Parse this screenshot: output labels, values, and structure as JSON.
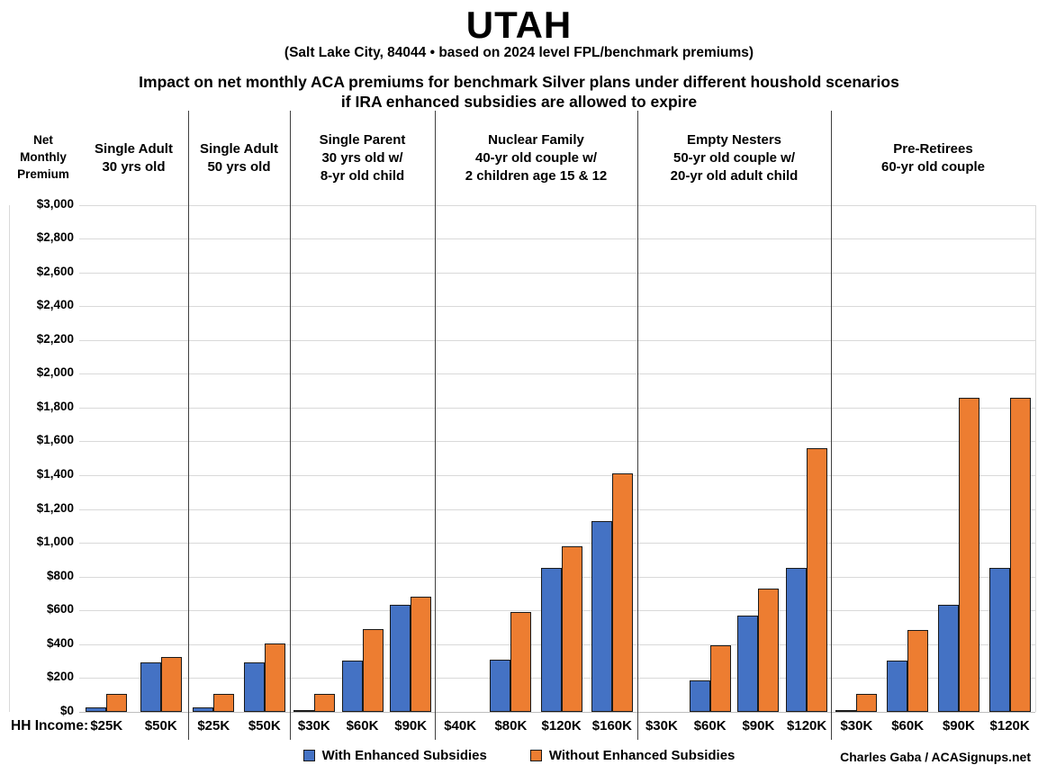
{
  "title": "UTAH",
  "subtitle": "(Salt Lake City, 84044 • based on 2024 level FPL/benchmark premiums)",
  "heading": [
    "Impact on net monthly ACA premiums for benchmark Silver plans under different houshold scenarios",
    "if IRA enhanced subsidies are allowed to expire"
  ],
  "credit": "Charles Gaba / ACASignups.net",
  "chart_data": {
    "type": "bar",
    "title": "UTAH",
    "subtitle": "(Salt Lake City, 84044 • based on 2024 level FPL/benchmark premiums)",
    "description": "Impact on net monthly ACA premiums for benchmark Silver plans under different houshold scenarios if IRA enhanced subsidies are allowed to expire",
    "y_axis": {
      "label_lines": [
        "Net",
        "Monthly",
        "Premium"
      ],
      "min": 0,
      "max": 3000,
      "step": 200,
      "grid": true,
      "ticks": [
        "$3,000",
        "$2,800",
        "$2,600",
        "$2,400",
        "$2,200",
        "$2,000",
        "$1,800",
        "$1,600",
        "$1,400",
        "$1,200",
        "$1,000",
        "$800",
        "$600",
        "$400",
        "$200",
        "$0"
      ]
    },
    "x_axis_prefix_label": "HH Income:",
    "legend_position": "bottom",
    "legend": [
      {
        "name": "With Enhanced Subsidies",
        "color": "#4472C4"
      },
      {
        "name": "Without Enhanced Subsidies",
        "color": "#ED7D31"
      }
    ],
    "groups": [
      {
        "label_lines": [
          "Single Adult",
          "30 yrs old"
        ],
        "categories": [
          "$25K",
          "$50K"
        ],
        "series": {
          "with_enhanced": [
            25,
            295
          ],
          "without_enhanced": [
            105,
            325
          ]
        }
      },
      {
        "label_lines": [
          "Single Adult",
          "50 yrs old"
        ],
        "categories": [
          "$25K",
          "$50K"
        ],
        "series": {
          "with_enhanced": [
            25,
            295
          ],
          "without_enhanced": [
            105,
            405
          ]
        }
      },
      {
        "label_lines": [
          "Single Parent",
          "30 yrs old w/",
          "8-yr old child"
        ],
        "categories": [
          "$30K",
          "$60K",
          "$90K"
        ],
        "series": {
          "with_enhanced": [
            10,
            305,
            635
          ],
          "without_enhanced": [
            105,
            490,
            680
          ]
        }
      },
      {
        "label_lines": [
          "Nuclear Family",
          "40-yr old couple w/",
          "2 children age 15 & 12"
        ],
        "categories": [
          "$40K",
          "$80K",
          "$120K",
          "$160K"
        ],
        "series": {
          "with_enhanced": [
            0,
            310,
            850,
            1130
          ],
          "without_enhanced": [
            0,
            590,
            980,
            1410
          ]
        }
      },
      {
        "label_lines": [
          "Empty Nesters",
          "50-yr old couple w/",
          "20-yr old adult child"
        ],
        "categories": [
          "$30K",
          "$60K",
          "$90K",
          "$120K"
        ],
        "series": {
          "with_enhanced": [
            0,
            185,
            570,
            850
          ],
          "without_enhanced": [
            0,
            395,
            730,
            1560
          ]
        }
      },
      {
        "label_lines": [
          "Pre-Retirees",
          "60-yr old couple"
        ],
        "categories": [
          "$30K",
          "$60K",
          "$90K",
          "$120K"
        ],
        "series": {
          "with_enhanced": [
            10,
            305,
            635,
            850
          ],
          "without_enhanced": [
            105,
            485,
            1860,
            1860
          ]
        }
      }
    ]
  }
}
